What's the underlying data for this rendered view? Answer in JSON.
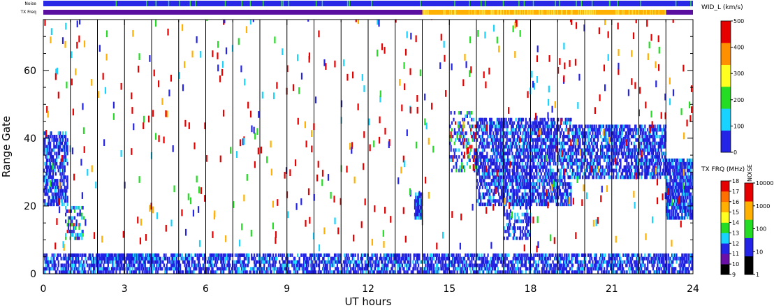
{
  "chart_data": {
    "type": "heatmap",
    "xlabel": "UT hours",
    "ylabel": "Range Gate",
    "xlim": [
      0,
      24
    ],
    "ylim": [
      0,
      75
    ],
    "xticks": [
      0,
      3,
      6,
      9,
      12,
      15,
      18,
      21,
      24
    ],
    "yticks": [
      0,
      20,
      40,
      60
    ],
    "vertical_lines_hours": [
      1,
      2,
      3,
      4,
      5,
      6,
      7,
      8,
      9,
      10,
      11,
      12,
      13,
      14,
      15,
      16,
      17,
      18,
      19,
      20,
      21,
      22,
      23
    ],
    "top_strips": {
      "noise_label": "Noise",
      "txfreq_label": "TX Freq",
      "txfreq_segments": [
        {
          "from": 0,
          "to": 14,
          "color": "#5a0fa0"
        },
        {
          "from": 14,
          "to": 23,
          "color": "#ffb000"
        },
        {
          "from": 23,
          "to": 24,
          "color": "#5a0fa0"
        }
      ],
      "noise_color": "#2828e6",
      "noise_ticks_color": "#3cdc3c"
    },
    "colorbars": {
      "width": {
        "label": "WID_L (km/s)",
        "ticks": [
          "0",
          "100",
          "200",
          "300",
          "400",
          "500"
        ],
        "colors": [
          "#2424e6",
          "#18d2ff",
          "#24dc24",
          "#ffff20",
          "#ff9000",
          "#e60000"
        ]
      },
      "txfreq": {
        "label": "TX FRQ (MHz)",
        "ticks": [
          "9",
          "10",
          "11",
          "12",
          "13",
          "14",
          "15",
          "16",
          "17",
          "18"
        ],
        "colors": [
          "#000000",
          "#6a0fa8",
          "#2424e6",
          "#18d2ff",
          "#24dc24",
          "#ffff20",
          "#ffb000",
          "#ff7000",
          "#e60000"
        ]
      },
      "noise": {
        "label": "NOISE",
        "ticks": [
          "1",
          "10",
          "100",
          "1000",
          "10000"
        ],
        "colors": [
          "#000000",
          "#2424e6",
          "#24dc24",
          "#ffb000",
          "#e60000"
        ]
      }
    },
    "backscatter_regions": [
      {
        "t0": 0.0,
        "t1": 24.0,
        "g0": 0,
        "g1": 6,
        "density": 0.55,
        "palette": "blue"
      },
      {
        "t0": 0.0,
        "t1": 0.9,
        "g0": 20,
        "g1": 42,
        "density": 0.55,
        "palette": "blue"
      },
      {
        "t0": 2.0,
        "t1": 4.2,
        "g0": 4,
        "g1": 6,
        "density": 0.8,
        "palette": "blue"
      },
      {
        "t0": 13.7,
        "t1": 14.0,
        "g0": 16,
        "g1": 24,
        "density": 0.8,
        "palette": "blue"
      },
      {
        "t0": 15.0,
        "t1": 16.0,
        "g0": 30,
        "g1": 48,
        "density": 0.25,
        "palette": "mixed"
      },
      {
        "t0": 16.0,
        "t1": 19.5,
        "g0": 20,
        "g1": 46,
        "density": 0.55,
        "palette": "blue"
      },
      {
        "t0": 19.5,
        "t1": 23.0,
        "g0": 28,
        "g1": 44,
        "density": 0.55,
        "palette": "blue"
      },
      {
        "t0": 23.0,
        "t1": 24.0,
        "g0": 16,
        "g1": 34,
        "density": 0.75,
        "palette": "blue"
      },
      {
        "t0": 17.0,
        "t1": 18.0,
        "g0": 10,
        "g1": 22,
        "density": 0.3,
        "palette": "blue"
      },
      {
        "t0": 0.8,
        "t1": 1.5,
        "g0": 10,
        "g1": 20,
        "density": 0.35,
        "palette": "mixed"
      }
    ],
    "scatter_noise": {
      "count": 520,
      "palette": "sparse"
    }
  }
}
